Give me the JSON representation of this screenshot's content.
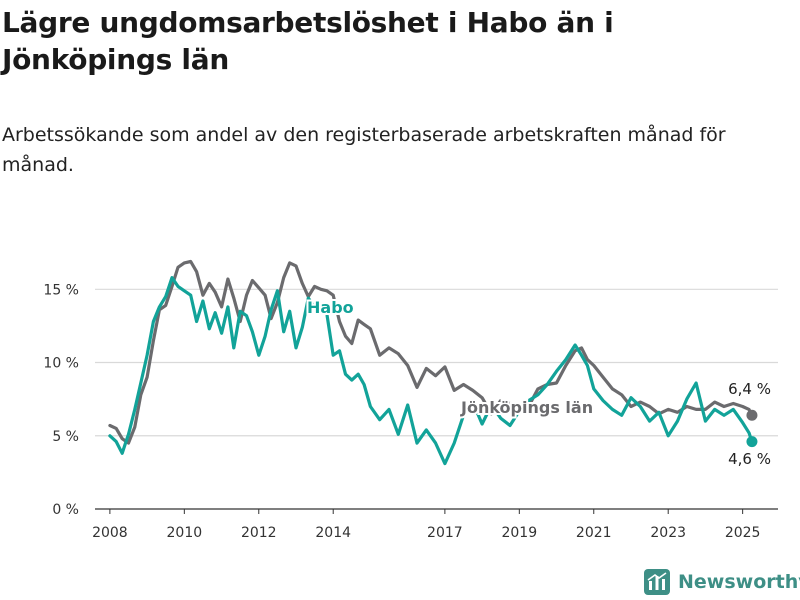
{
  "title": "Lägre ungdomsarbetslöshet i Habo än i Jönköpings län",
  "subtitle": "Arbetssökande som andel av den registerbaserade arbetskraften månad för månad.",
  "brand": "Newsworthy",
  "colors": {
    "habo": "#12a399",
    "lan": "#6b6b6e",
    "grid": "#d9d9d9",
    "axis": "#333333",
    "brand": "#3e8f86"
  },
  "chart_data": {
    "type": "line",
    "xlabel": "",
    "ylabel": "",
    "xlim": [
      2007.6,
      2025.95
    ],
    "ylim": [
      0,
      17
    ],
    "x_ticks": [
      2008,
      2010,
      2012,
      2014,
      2017,
      2019,
      2021,
      2023,
      2025
    ],
    "y_ticks": [
      0,
      5,
      10,
      15
    ],
    "y_tick_labels": [
      "0 %",
      "5 %",
      "10 %",
      "15 %"
    ],
    "x_tick_labels": [
      "2008",
      "2010",
      "2012",
      "2014",
      "2017",
      "2019",
      "2021",
      "2023",
      "2025"
    ],
    "grid": "horizontal",
    "series": [
      {
        "name": "Jönköpings län",
        "end_label": "6,4 %",
        "x": [
          2008.0,
          2008.17,
          2008.33,
          2008.5,
          2008.67,
          2008.83,
          2009.0,
          2009.17,
          2009.33,
          2009.5,
          2009.67,
          2009.83,
          2010.0,
          2010.17,
          2010.33,
          2010.5,
          2010.67,
          2010.83,
          2011.0,
          2011.17,
          2011.33,
          2011.5,
          2011.67,
          2011.83,
          2012.0,
          2012.17,
          2012.33,
          2012.5,
          2012.67,
          2012.83,
          2013.0,
          2013.17,
          2013.33,
          2013.5,
          2013.67,
          2013.83,
          2014.0,
          2014.17,
          2014.33,
          2014.5,
          2014.67,
          2014.83,
          2015.0,
          2015.25,
          2015.5,
          2015.75,
          2016.0,
          2016.25,
          2016.5,
          2016.75,
          2017.0,
          2017.25,
          2017.5,
          2017.75,
          2018.0,
          2018.25,
          2018.5,
          2018.75,
          2019.0,
          2019.25,
          2019.5,
          2019.75,
          2020.0,
          2020.25,
          2020.5,
          2020.67,
          2020.83,
          2021.0,
          2021.25,
          2021.5,
          2021.75,
          2022.0,
          2022.25,
          2022.5,
          2022.75,
          2023.0,
          2023.25,
          2023.5,
          2023.75,
          2024.0,
          2024.25,
          2024.5,
          2024.75,
          2025.0,
          2025.17,
          2025.25
        ],
        "y": [
          5.7,
          5.5,
          4.8,
          4.5,
          5.6,
          7.8,
          9.0,
          11.5,
          13.6,
          13.9,
          15.2,
          16.5,
          16.8,
          16.9,
          16.2,
          14.6,
          15.4,
          14.8,
          13.8,
          15.7,
          14.4,
          12.8,
          14.6,
          15.6,
          15.1,
          14.6,
          13.0,
          14.1,
          15.8,
          16.8,
          16.6,
          15.4,
          14.5,
          15.2,
          15.0,
          14.9,
          14.6,
          12.8,
          11.8,
          11.3,
          12.9,
          12.6,
          12.3,
          10.5,
          11.0,
          10.6,
          9.8,
          8.3,
          9.6,
          9.1,
          9.7,
          8.1,
          8.5,
          8.1,
          7.6,
          6.5,
          7.4,
          7.2,
          6.6,
          7.0,
          8.2,
          8.5,
          8.6,
          9.8,
          10.8,
          11.0,
          10.2,
          9.8,
          9.0,
          8.2,
          7.8,
          7.0,
          7.3,
          7.0,
          6.5,
          6.8,
          6.6,
          7.0,
          6.8,
          6.8,
          7.3,
          7.0,
          7.2,
          7.0,
          6.8,
          6.4
        ]
      },
      {
        "name": "Habo",
        "end_label": "4,6 %",
        "x": [
          2008.0,
          2008.17,
          2008.33,
          2008.42,
          2008.5,
          2008.67,
          2008.83,
          2009.0,
          2009.17,
          2009.33,
          2009.5,
          2009.67,
          2009.83,
          2010.0,
          2010.17,
          2010.33,
          2010.5,
          2010.67,
          2010.83,
          2011.0,
          2011.17,
          2011.33,
          2011.5,
          2011.67,
          2011.83,
          2012.0,
          2012.17,
          2012.33,
          2012.5,
          2012.67,
          2012.83,
          2013.0,
          2013.17,
          2013.33,
          2013.5,
          2013.67,
          2013.83,
          2014.0,
          2014.17,
          2014.33,
          2014.5,
          2014.67,
          2014.83,
          2015.0,
          2015.25,
          2015.5,
          2015.75,
          2016.0,
          2016.25,
          2016.5,
          2016.75,
          2017.0,
          2017.25,
          2017.5,
          2017.75,
          2018.0,
          2018.25,
          2018.5,
          2018.75,
          2019.0,
          2019.25,
          2019.5,
          2019.75,
          2020.0,
          2020.25,
          2020.5,
          2020.67,
          2020.83,
          2021.0,
          2021.25,
          2021.5,
          2021.75,
          2022.0,
          2022.25,
          2022.5,
          2022.75,
          2023.0,
          2023.25,
          2023.5,
          2023.75,
          2024.0,
          2024.25,
          2024.5,
          2024.75,
          2025.0,
          2025.17,
          2025.25
        ],
        "y": [
          5.0,
          4.6,
          3.8,
          4.5,
          5.1,
          6.8,
          8.6,
          10.5,
          12.8,
          13.8,
          14.5,
          15.8,
          15.2,
          14.9,
          14.6,
          12.8,
          14.2,
          12.3,
          13.4,
          12.0,
          13.8,
          11.0,
          13.5,
          13.2,
          12.1,
          10.5,
          11.8,
          13.6,
          14.9,
          12.1,
          13.5,
          11.0,
          12.4,
          14.4,
          13.8,
          13.6,
          13.3,
          10.5,
          10.8,
          9.2,
          8.8,
          9.2,
          8.5,
          7.0,
          6.1,
          6.8,
          5.1,
          7.1,
          4.5,
          5.4,
          4.5,
          3.1,
          4.5,
          6.4,
          7.3,
          5.8,
          7.1,
          6.2,
          5.7,
          6.7,
          7.4,
          7.8,
          8.5,
          9.4,
          10.2,
          11.2,
          10.5,
          9.8,
          8.2,
          7.4,
          6.8,
          6.4,
          7.6,
          7.0,
          6.0,
          6.6,
          5.0,
          6.0,
          7.5,
          8.6,
          6.0,
          6.8,
          6.4,
          6.8,
          5.9,
          5.2,
          4.6
        ]
      }
    ]
  }
}
